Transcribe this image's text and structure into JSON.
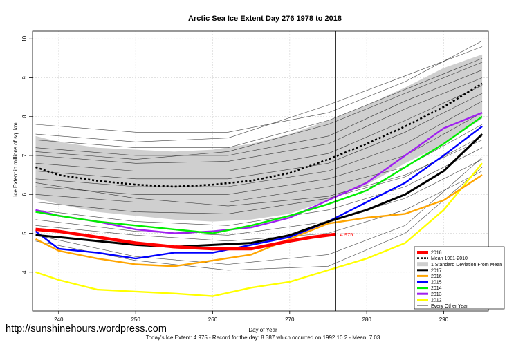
{
  "chart_data": {
    "type": "line",
    "title": "Arctic Sea Ice Extent Day 276 1978 to 2018",
    "xlabel": "Day of Year",
    "ylabel": "Ice Extent in millions of sq. km.",
    "xlim": [
      236.6,
      295.8
    ],
    "ylim": [
      3.0,
      10.2
    ],
    "x_ticks": [
      240,
      250,
      260,
      270,
      280,
      290
    ],
    "y_ticks": [
      4,
      5,
      6,
      7,
      8,
      9,
      10
    ],
    "grid": true,
    "legend_position": "bottom-right",
    "marker_day": 276,
    "annotation": "4.975",
    "footer": "Today's Ice Extent: 4.975  - Record for the day: 8.387 which occurred on 1992.10.2  - Mean: 7.03",
    "colors": {
      "y2018": "#ff0000",
      "mean": "#000000",
      "sd": "#cfcfcf",
      "y2017": "#000000",
      "y2016": "#ffa500",
      "y2015": "#0000ff",
      "y2014": "#00ee00",
      "y2013": "#a020f0",
      "y2012": "#ffff00",
      "other": "#000000"
    },
    "legend": [
      "2018",
      "Mean 1981-2010",
      "1 Standard Deviation From Mean",
      "2017",
      "2016",
      "2015",
      "2014",
      "2013",
      "2012",
      "Every Other Year"
    ],
    "mean_days": [
      237,
      240,
      245,
      250,
      255,
      260,
      265,
      270,
      275,
      280,
      285,
      290,
      295
    ],
    "mean_values": [
      6.7,
      6.5,
      6.35,
      6.25,
      6.2,
      6.25,
      6.35,
      6.55,
      6.9,
      7.3,
      7.75,
      8.25,
      8.85
    ],
    "sd_upper": [
      7.5,
      7.35,
      7.2,
      7.15,
      7.1,
      7.15,
      7.3,
      7.55,
      7.9,
      8.3,
      8.75,
      9.25,
      9.6
    ],
    "sd_lower": [
      5.9,
      5.75,
      5.55,
      5.45,
      5.35,
      5.3,
      5.35,
      5.5,
      5.85,
      6.25,
      6.8,
      7.3,
      7.95
    ],
    "series": [
      {
        "name": "2018",
        "x": [
          237,
          240,
          245,
          250,
          255,
          260,
          265,
          270,
          273,
          276
        ],
        "y": [
          5.1,
          5.05,
          4.9,
          4.75,
          4.65,
          4.6,
          4.6,
          4.8,
          4.9,
          4.975
        ]
      },
      {
        "name": "2017",
        "x": [
          237,
          240,
          245,
          250,
          255,
          260,
          265,
          270,
          275,
          280,
          285,
          290,
          295
        ],
        "y": [
          4.95,
          4.9,
          4.8,
          4.7,
          4.65,
          4.7,
          4.75,
          4.95,
          5.3,
          5.6,
          6.0,
          6.6,
          7.55
        ]
      },
      {
        "name": "2016",
        "x": [
          237,
          240,
          245,
          250,
          255,
          260,
          265,
          270,
          275,
          280,
          285,
          290,
          295
        ],
        "y": [
          4.85,
          4.55,
          4.35,
          4.2,
          4.15,
          4.3,
          4.45,
          4.85,
          5.25,
          5.4,
          5.5,
          5.85,
          6.5
        ]
      },
      {
        "name": "2015",
        "x": [
          237,
          240,
          245,
          250,
          255,
          260,
          265,
          270,
          275,
          280,
          285,
          290,
          295
        ],
        "y": [
          5.05,
          4.6,
          4.5,
          4.35,
          4.5,
          4.5,
          4.7,
          4.9,
          5.3,
          5.8,
          6.3,
          7.0,
          7.75
        ]
      },
      {
        "name": "2014",
        "x": [
          237,
          240,
          245,
          250,
          255,
          260,
          265,
          270,
          275,
          280,
          285,
          290,
          295
        ],
        "y": [
          5.55,
          5.45,
          5.3,
          5.2,
          5.1,
          5.0,
          5.2,
          5.45,
          5.75,
          6.1,
          6.7,
          7.3,
          8.0
        ]
      },
      {
        "name": "2013",
        "x": [
          237,
          240,
          245,
          250,
          255,
          260,
          265,
          270,
          275,
          280,
          285,
          290,
          295
        ],
        "y": [
          5.6,
          5.45,
          5.3,
          5.1,
          5.0,
          5.05,
          5.15,
          5.4,
          5.85,
          6.3,
          7.0,
          7.7,
          8.1
        ]
      },
      {
        "name": "2012",
        "x": [
          237,
          240,
          245,
          250,
          255,
          260,
          265,
          270,
          275,
          280,
          285,
          290,
          295
        ],
        "y": [
          4.0,
          3.8,
          3.55,
          3.5,
          3.45,
          3.38,
          3.6,
          3.75,
          4.05,
          4.35,
          4.75,
          5.6,
          6.8
        ]
      }
    ],
    "other_years": [
      {
        "x": [
          237,
          250,
          262,
          275,
          285,
          295
        ],
        "y": [
          7.8,
          7.6,
          7.6,
          8.1,
          8.9,
          9.95
        ]
      },
      {
        "x": [
          237,
          250,
          262,
          275,
          285,
          295
        ],
        "y": [
          7.55,
          7.35,
          7.45,
          8.3,
          9.05,
          9.8
        ]
      },
      {
        "x": [
          237,
          250,
          262,
          275,
          285,
          295
        ],
        "y": [
          7.4,
          7.2,
          7.2,
          7.9,
          8.7,
          9.5
        ]
      },
      {
        "x": [
          237,
          250,
          262,
          275,
          285,
          295
        ],
        "y": [
          7.2,
          7.0,
          7.0,
          7.5,
          8.4,
          9.2
        ]
      },
      {
        "x": [
          237,
          250,
          262,
          275,
          285,
          295
        ],
        "y": [
          7.0,
          6.8,
          6.85,
          7.3,
          8.2,
          9.0
        ]
      },
      {
        "x": [
          237,
          250,
          262,
          275,
          285,
          295
        ],
        "y": [
          6.8,
          6.6,
          6.6,
          7.05,
          7.9,
          8.8
        ]
      },
      {
        "x": [
          237,
          250,
          262,
          275,
          285,
          295
        ],
        "y": [
          6.6,
          6.4,
          6.4,
          6.8,
          7.6,
          8.6
        ]
      },
      {
        "x": [
          237,
          250,
          262,
          275,
          285,
          295
        ],
        "y": [
          6.4,
          6.2,
          6.2,
          6.6,
          7.3,
          8.4
        ]
      },
      {
        "x": [
          237,
          250,
          262,
          275,
          285,
          295
        ],
        "y": [
          6.2,
          6.0,
          6.0,
          6.4,
          7.0,
          8.1
        ]
      },
      {
        "x": [
          237,
          250,
          262,
          275,
          285,
          295
        ],
        "y": [
          6.0,
          5.8,
          5.8,
          6.2,
          6.7,
          7.8
        ]
      },
      {
        "x": [
          237,
          250,
          262,
          275,
          285,
          295
        ],
        "y": [
          5.8,
          5.55,
          5.5,
          5.9,
          6.45,
          7.5
        ]
      },
      {
        "x": [
          237,
          250,
          262,
          275,
          285,
          295
        ],
        "y": [
          5.6,
          5.3,
          5.2,
          5.6,
          6.2,
          7.2
        ]
      },
      {
        "x": [
          237,
          250,
          262,
          275,
          285,
          295
        ],
        "y": [
          5.35,
          5.05,
          4.95,
          5.3,
          5.9,
          6.9
        ]
      },
      {
        "x": [
          237,
          250,
          262,
          275,
          285,
          295
        ],
        "y": [
          5.2,
          4.95,
          4.8,
          5.0,
          5.6,
          6.6
        ]
      },
      {
        "x": [
          237,
          250,
          262,
          275,
          285,
          295
        ],
        "y": [
          4.95,
          4.4,
          4.2,
          4.45,
          5.2,
          6.95
        ]
      },
      {
        "x": [
          237,
          250,
          262,
          275,
          285,
          295
        ],
        "y": [
          4.8,
          4.3,
          4.05,
          4.15,
          5.0,
          6.7
        ]
      },
      {
        "x": [
          237,
          250,
          262,
          275,
          285,
          295
        ],
        "y": [
          6.3,
          5.9,
          5.7,
          5.95,
          6.5,
          7.4
        ]
      },
      {
        "x": [
          237,
          250,
          262,
          275,
          285,
          295
        ],
        "y": [
          7.1,
          6.9,
          7.1,
          7.8,
          8.6,
          9.4
        ]
      }
    ]
  },
  "site_url": "http://sunshinehours.wordpress.com"
}
